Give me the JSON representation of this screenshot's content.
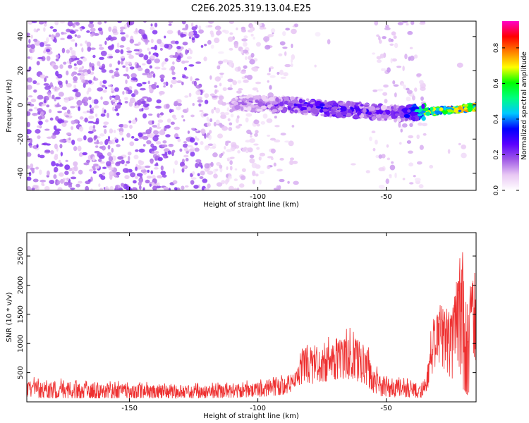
{
  "title": "C2E6.2025.319.13.04.E25",
  "chart_data": [
    {
      "type": "heatmap",
      "name": "spectrogram",
      "xlabel": "Height of straight line (km)",
      "ylabel": "Frequency (Hz)",
      "xlim": [
        -190,
        -15
      ],
      "ylim": [
        -50,
        49
      ],
      "xticks": [
        -150,
        -100,
        -50
      ],
      "yticks": [
        -40,
        -20,
        0,
        20,
        40
      ],
      "colorbar": {
        "label": "Normalized spectral amplitude",
        "range": [
          0,
          0.95
        ],
        "ticks": [
          "0.0",
          "0.2",
          "0.4",
          "0.6",
          "0.8"
        ],
        "tick_values": [
          0.0,
          0.2,
          0.4,
          0.6,
          0.8
        ],
        "colors": [
          "#ffffff",
          "#e9c8f4",
          "#a05ae6",
          "#5a00ff",
          "#0000ff",
          "#00c8ff",
          "#00ff80",
          "#00ff00",
          "#ffff00",
          "#ff8000",
          "#ff0000",
          "#ff00c8"
        ]
      },
      "signal_track": {
        "x": [
          -105,
          -95,
          -85,
          -75,
          -65,
          -55,
          -45,
          -35,
          -25,
          -15
        ],
        "freq": [
          1,
          0.5,
          0,
          -2,
          -3,
          -4,
          -5,
          -4,
          -3,
          -1
        ],
        "peak_amplitude": [
          0.2,
          0.25,
          0.3,
          0.35,
          0.35,
          0.3,
          0.25,
          0.7,
          0.8,
          0.85
        ]
      }
    },
    {
      "type": "line",
      "name": "snr",
      "xlabel": "Height of straight line (km)",
      "ylabel": "SNR (10 * v/v)",
      "xlim": [
        -190,
        -15
      ],
      "ylim": [
        0,
        2900
      ],
      "xticks": [
        -150,
        -100,
        -50
      ],
      "yticks": [
        500,
        1000,
        1500,
        2000,
        2500
      ],
      "color": "#ee3030",
      "envelope_x": [
        -190,
        -150,
        -120,
        -100,
        -90,
        -85,
        -82,
        -78,
        -73,
        -68,
        -63,
        -58,
        -55,
        -52,
        -48,
        -40,
        -35,
        -34,
        -32,
        -30,
        -28,
        -25,
        -22,
        -20,
        -18,
        -16,
        -15
      ],
      "envelope_peak": [
        430,
        360,
        330,
        380,
        500,
        600,
        1100,
        1000,
        1100,
        1250,
        1300,
        1200,
        800,
        520,
        450,
        400,
        400,
        750,
        1500,
        1900,
        2000,
        1700,
        2700,
        2870,
        2100,
        2700,
        2500
      ],
      "envelope_floor": [
        60,
        60,
        60,
        80,
        120,
        200,
        350,
        300,
        350,
        400,
        380,
        300,
        150,
        90,
        80,
        60,
        70,
        200,
        500,
        700,
        600,
        300,
        700,
        200,
        100,
        800,
        700
      ]
    }
  ]
}
